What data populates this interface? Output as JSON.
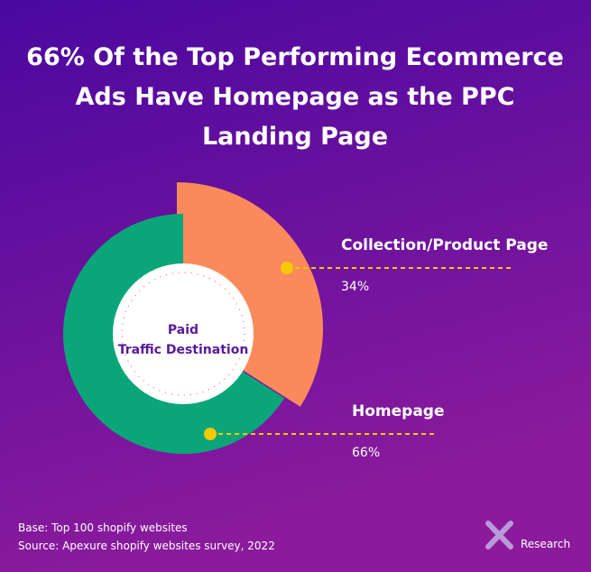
{
  "chart_data": {
    "type": "donut",
    "title": [
      "66% Of the Top Performing Ecommerce",
      "Ads Have Homepage as the PPC",
      "Landing Page"
    ],
    "center_label": [
      "Paid",
      "Traffic Destination"
    ],
    "categories": [
      "Collection/Product Page",
      "Homepage"
    ],
    "values": [
      34,
      66
    ],
    "value_labels": [
      "34%",
      "66%"
    ],
    "colors": [
      "#fa8a5c",
      "#0aa67a"
    ],
    "footnotes": [
      "Base: Top 100 shopify websites",
      "Source: Apexure shopify websites survey, 2022"
    ],
    "brand": "Research"
  }
}
